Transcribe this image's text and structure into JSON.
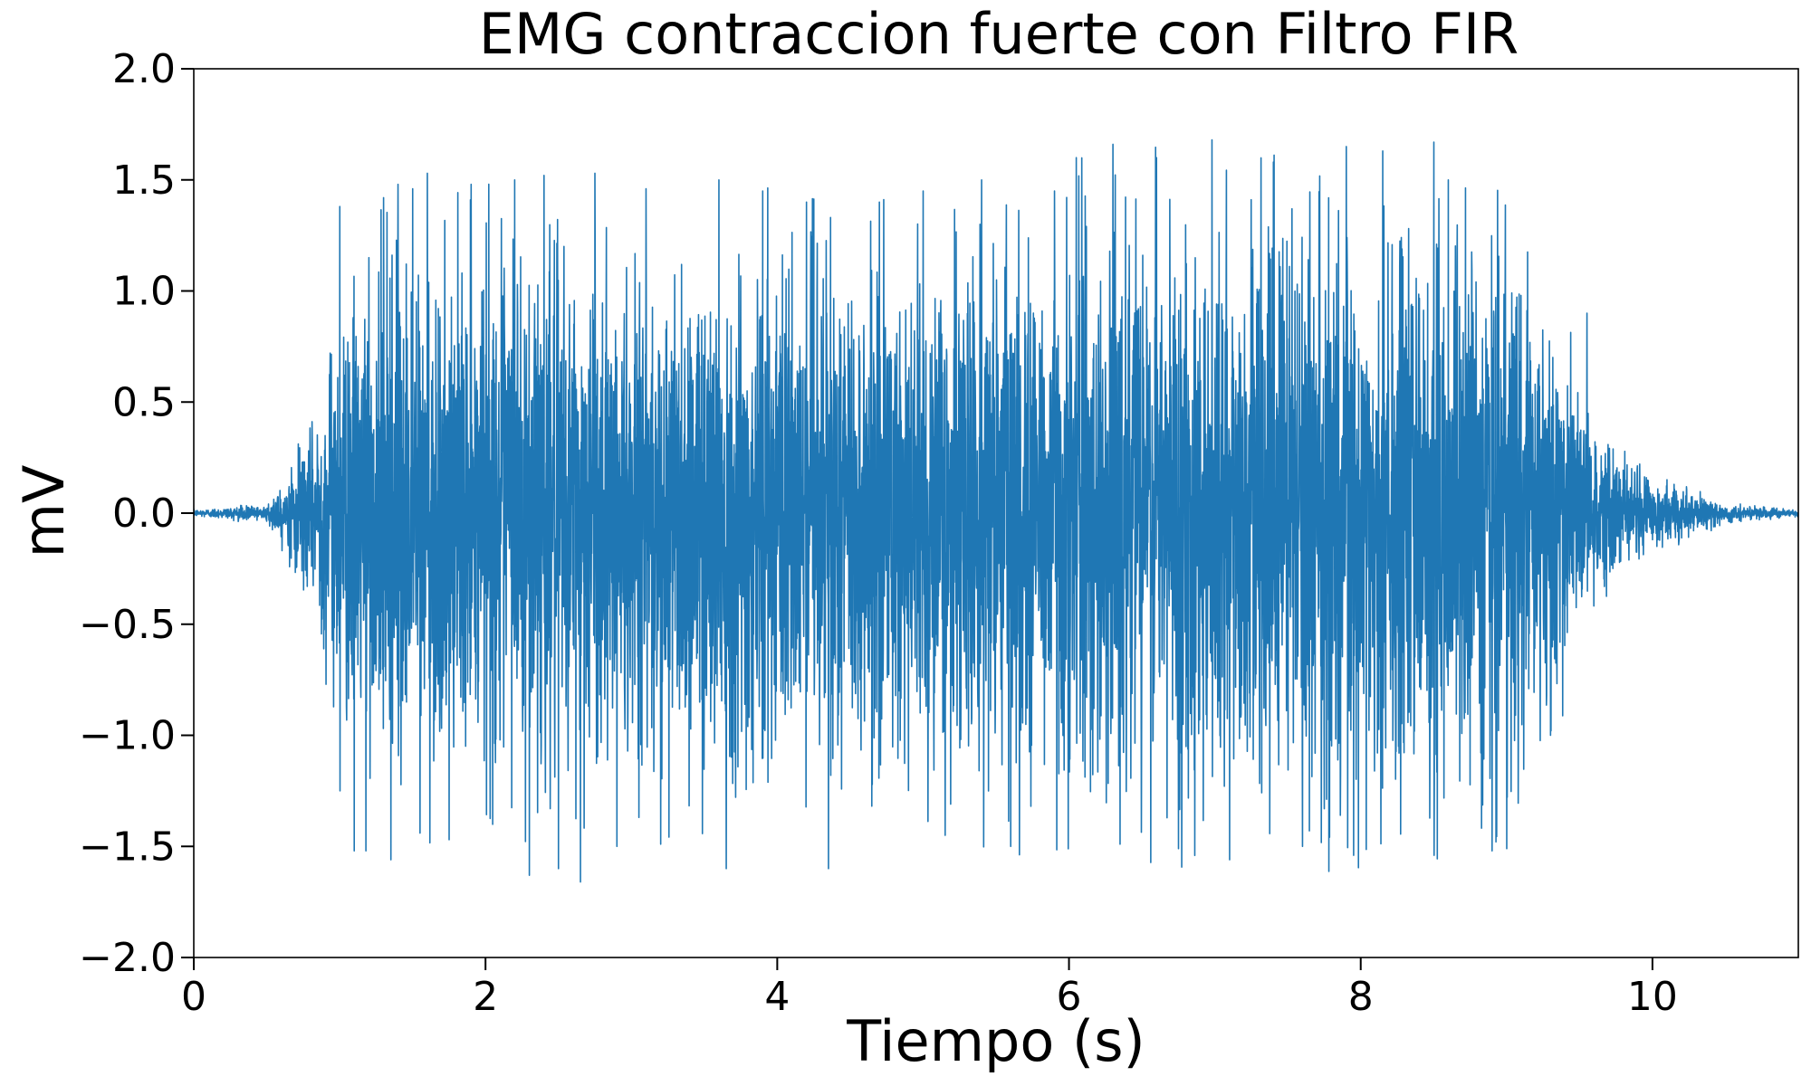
{
  "chart_data": {
    "type": "line",
    "title": "EMG contraccion fuerte con Filtro FIR",
    "xlabel": "Tiempo (s)",
    "ylabel": "mV",
    "xlim": [
      0,
      11
    ],
    "ylim": [
      -2.0,
      2.0
    ],
    "x_ticks": [
      0,
      2,
      4,
      6,
      8,
      10
    ],
    "x_tick_labels": [
      "0",
      "2",
      "4",
      "6",
      "8",
      "10"
    ],
    "y_ticks": [
      -2.0,
      -1.5,
      -1.0,
      -0.5,
      0.0,
      0.5,
      1.0,
      1.5,
      2.0
    ],
    "y_tick_labels": [
      "−2.0",
      "−1.5",
      "−1.0",
      "−0.5",
      "0.0",
      "0.5",
      "1.0",
      "1.5",
      "2.0"
    ],
    "grid": false,
    "series": [
      {
        "color": "#1f77b4",
        "envelope_points": [
          {
            "t": 0.0,
            "amp": 0.02
          },
          {
            "t": 0.5,
            "amp": 0.05
          },
          {
            "t": 0.8,
            "amp": 0.45
          },
          {
            "t": 1.0,
            "amp": 1.2
          },
          {
            "t": 1.5,
            "amp": 1.5
          },
          {
            "t": 2.5,
            "amp": 1.5
          },
          {
            "t": 3.5,
            "amp": 1.5
          },
          {
            "t": 5.0,
            "amp": 1.45
          },
          {
            "t": 6.3,
            "amp": 1.65
          },
          {
            "t": 7.0,
            "amp": 1.65
          },
          {
            "t": 8.5,
            "amp": 1.65
          },
          {
            "t": 9.0,
            "amp": 1.5
          },
          {
            "t": 9.4,
            "amp": 0.9
          },
          {
            "t": 9.6,
            "amp": 0.5
          },
          {
            "t": 10.0,
            "amp": 0.2
          },
          {
            "t": 10.5,
            "amp": 0.05
          },
          {
            "t": 11.0,
            "amp": 0.02
          }
        ],
        "peak_events": [
          {
            "t": 1.0,
            "v": 1.38
          },
          {
            "t": 1.0,
            "v": -1.25
          },
          {
            "t": 1.1,
            "v": -1.52
          },
          {
            "t": 1.18,
            "v": -1.52
          },
          {
            "t": 1.2,
            "v": 1.15
          },
          {
            "t": 1.3,
            "v": 1.42
          },
          {
            "t": 1.35,
            "v": -1.56
          },
          {
            "t": 1.4,
            "v": 1.48
          },
          {
            "t": 1.5,
            "v": 1.46
          },
          {
            "t": 1.55,
            "v": -1.44
          },
          {
            "t": 1.6,
            "v": 1.53
          },
          {
            "t": 1.75,
            "v": -1.47
          },
          {
            "t": 1.9,
            "v": 1.48
          },
          {
            "t": 2.2,
            "v": 1.5
          },
          {
            "t": 2.3,
            "v": -1.63
          },
          {
            "t": 2.4,
            "v": 1.52
          },
          {
            "t": 2.5,
            "v": -1.6
          },
          {
            "t": 2.65,
            "v": -1.66
          },
          {
            "t": 2.75,
            "v": 1.53
          },
          {
            "t": 2.9,
            "v": -1.5
          },
          {
            "t": 3.1,
            "v": 1.46
          },
          {
            "t": 3.2,
            "v": -1.49
          },
          {
            "t": 3.6,
            "v": 1.5
          },
          {
            "t": 3.65,
            "v": -1.6
          },
          {
            "t": 3.9,
            "v": 1.45
          },
          {
            "t": 4.2,
            "v": 1.4
          },
          {
            "t": 4.35,
            "v": -1.6
          },
          {
            "t": 4.7,
            "v": 1.4
          },
          {
            "t": 5.0,
            "v": 1.45
          },
          {
            "t": 5.15,
            "v": -1.45
          },
          {
            "t": 5.4,
            "v": 1.5
          },
          {
            "t": 5.6,
            "v": -1.5
          },
          {
            "t": 5.9,
            "v": 1.45
          },
          {
            "t": 6.05,
            "v": 1.6
          },
          {
            "t": 6.3,
            "v": 1.66
          },
          {
            "t": 6.35,
            "v": -1.49
          },
          {
            "t": 6.6,
            "v": 1.6
          },
          {
            "t": 6.75,
            "v": -1.51
          },
          {
            "t": 6.98,
            "v": 1.68
          },
          {
            "t": 7.1,
            "v": -1.56
          },
          {
            "t": 7.4,
            "v": 1.58
          },
          {
            "t": 7.6,
            "v": -1.5
          },
          {
            "t": 7.9,
            "v": 1.65
          },
          {
            "t": 7.95,
            "v": -1.54
          },
          {
            "t": 8.15,
            "v": 1.63
          },
          {
            "t": 8.5,
            "v": 1.67
          },
          {
            "t": 8.5,
            "v": -1.54
          },
          {
            "t": 8.6,
            "v": 1.5
          },
          {
            "t": 8.9,
            "v": -1.52
          },
          {
            "t": 9.0,
            "v": -1.51
          },
          {
            "t": 9.3,
            "v": -1.0
          },
          {
            "t": 9.55,
            "v": 0.9
          }
        ]
      }
    ]
  }
}
